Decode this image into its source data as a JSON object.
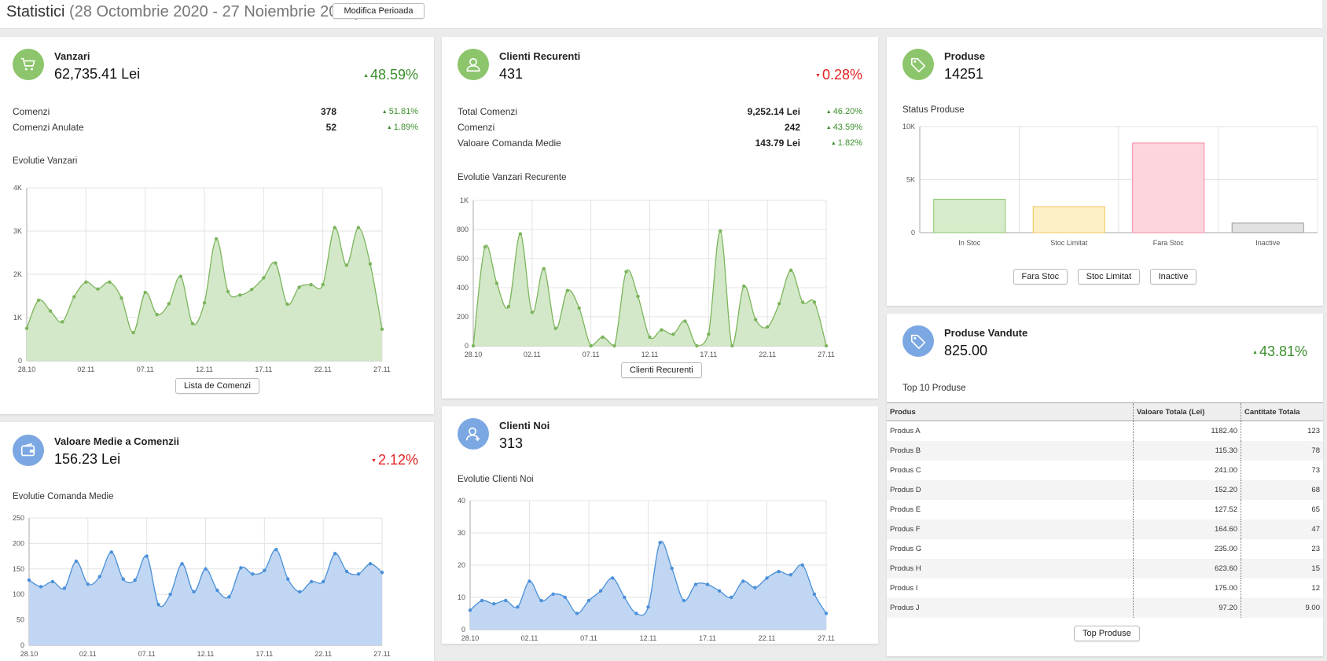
{
  "header": {
    "title": "Statistici",
    "range": "(28 Octombrie 2020 - 27 Noiembrie 2020)",
    "modify_button": "Modifica Perioada"
  },
  "vanzari": {
    "title": "Vanzari",
    "value": "62,735.41 Lei",
    "pct": "48.59%",
    "rows": [
      {
        "label": "Comenzi",
        "value": "378",
        "pct": "51.81%"
      },
      {
        "label": "Comenzi Anulate",
        "value": "52",
        "pct": "1.89%"
      }
    ],
    "chart_title": "Evolutie Vanzari",
    "button": "Lista de Comenzi"
  },
  "clienti_recurenti": {
    "title": "Clienti Recurenti",
    "value": "431",
    "pct": "0.28%",
    "rows": [
      {
        "label": "Total Comenzi",
        "value": "9,252.14 Lei",
        "pct": "46.20%"
      },
      {
        "label": "Comenzi",
        "value": "242",
        "pct": "43.59%"
      },
      {
        "label": "Valoare Comanda Medie",
        "value": "143.79 Lei",
        "pct": "1.82%"
      }
    ],
    "chart_title": "Evolutie Vanzari Recurente",
    "button": "Clienti Recurenti"
  },
  "produse": {
    "title": "Produse",
    "value": "14251",
    "chart_title": "Status Produse",
    "buttons": [
      "Fara Stoc",
      "Stoc Limitat",
      "Inactive"
    ]
  },
  "valoare_medie": {
    "title": "Valoare Medie a Comenzii",
    "value": "156.23 Lei",
    "pct": "2.12%",
    "chart_title": "Evolutie Comanda Medie"
  },
  "clienti_noi": {
    "title": "Clienti Noi",
    "value": "313",
    "chart_title": "Evolutie Clienti Noi"
  },
  "produse_vandute": {
    "title": "Produse Vandute",
    "value": "825.00",
    "pct": "43.81%",
    "table_title": "Top 10 Produse",
    "columns": [
      "Produs",
      "Valoare Totala (Lei)",
      "Cantitate Totala"
    ],
    "rows": [
      [
        "Produs A",
        "1182.40",
        "123"
      ],
      [
        "Produs B",
        "115.30",
        "78"
      ],
      [
        "Produs C",
        "241.00",
        "73"
      ],
      [
        "Produs D",
        "152.20",
        "68"
      ],
      [
        "Produs E",
        "127.52",
        "65"
      ],
      [
        "Produs F",
        "164.60",
        "47"
      ],
      [
        "Produs G",
        "235.00",
        "23"
      ],
      [
        "Produs H",
        "623.60",
        "15"
      ],
      [
        "Produs I",
        "175.00",
        "12"
      ],
      [
        "Produs J",
        "97.20",
        "9.00"
      ]
    ],
    "button": "Top Produse"
  },
  "colors": {
    "green_fill": "#d3e8c8",
    "green_line": "#7cb55c",
    "blue_fill": "#c1d6f2",
    "blue_line": "#4a90d9",
    "up": "#3a8f2b",
    "down": "#e32222"
  },
  "chart_data": [
    {
      "id": "vanzari",
      "type": "area",
      "x_ticks": [
        "28.10",
        "02.11",
        "07.11",
        "12.11",
        "17.11",
        "22.11",
        "27.11"
      ],
      "y_ticks": [
        "0",
        "1K",
        "2K",
        "3K",
        "4K"
      ],
      "ylim": [
        0,
        4000
      ],
      "values": [
        750,
        1400,
        1150,
        900,
        1480,
        1820,
        1660,
        1820,
        1450,
        650,
        1580,
        1070,
        1320,
        1950,
        860,
        1340,
        2820,
        1600,
        1520,
        1650,
        1920,
        2260,
        1310,
        1700,
        1760,
        1760,
        3080,
        2210,
        3080,
        2240,
        730
      ]
    },
    {
      "id": "clienti_recurenti",
      "type": "area",
      "x_ticks": [
        "28.10",
        "02.11",
        "07.11",
        "12.11",
        "17.11",
        "22.11",
        "27.11"
      ],
      "y_ticks": [
        "0",
        "200",
        "400",
        "600",
        "800",
        "1K"
      ],
      "ylim": [
        0,
        1000
      ],
      "values": [
        0,
        680,
        430,
        270,
        770,
        230,
        530,
        120,
        380,
        260,
        0,
        60,
        0,
        510,
        340,
        60,
        110,
        80,
        170,
        0,
        80,
        790,
        0,
        410,
        180,
        130,
        290,
        520,
        300,
        300,
        0
      ]
    },
    {
      "id": "produse_status",
      "type": "bar",
      "categories": [
        "In Stoc",
        "Stoc Limitat",
        "Fara Stoc",
        "Inactive"
      ],
      "values": [
        3150,
        2450,
        8450,
        900
      ],
      "y_ticks": [
        "0",
        "5K",
        "10K"
      ],
      "ylim": [
        0,
        10000
      ],
      "colors": [
        "#d6ebc9",
        "#fdefc6",
        "#fdd5dd",
        "#e2e2e2"
      ],
      "borders": [
        "#8cc56b",
        "#f2c75c",
        "#f48aa0",
        "#999999"
      ]
    },
    {
      "id": "valoare_medie",
      "type": "area",
      "x_ticks": [
        "28.10",
        "02.11",
        "07.11",
        "12.11",
        "17.11",
        "22.11",
        "27.11"
      ],
      "y_ticks": [
        "0",
        "50",
        "100",
        "150",
        "200",
        "250"
      ],
      "ylim": [
        0,
        250
      ],
      "values": [
        128,
        115,
        125,
        112,
        165,
        120,
        135,
        183,
        130,
        128,
        175,
        80,
        100,
        160,
        105,
        150,
        108,
        95,
        152,
        140,
        147,
        188,
        130,
        105,
        125,
        125,
        180,
        145,
        140,
        160,
        143
      ]
    },
    {
      "id": "clienti_noi",
      "type": "area",
      "x_ticks": [
        "28.10",
        "02.11",
        "07.11",
        "12.11",
        "17.11",
        "22.11",
        "27.11"
      ],
      "y_ticks": [
        "0",
        "10",
        "20",
        "30",
        "40"
      ],
      "ylim": [
        0,
        40
      ],
      "values": [
        6,
        9,
        8,
        9,
        7,
        15,
        9,
        11,
        10,
        5,
        9,
        12,
        16,
        10,
        5,
        7,
        27,
        19,
        9,
        14,
        14,
        12,
        10,
        15,
        13,
        16,
        18,
        17,
        20,
        11,
        5
      ]
    }
  ]
}
